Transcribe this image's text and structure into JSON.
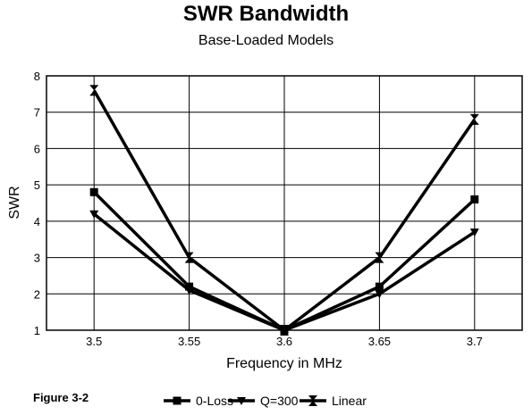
{
  "figure_label": "Figure 3-2",
  "chart_data": {
    "type": "line",
    "title": "SWR Bandwidth",
    "subtitle": "Base-Loaded Models",
    "xlabel": "Frequency in MHz",
    "ylabel": "SWR",
    "x": [
      3.5,
      3.55,
      3.6,
      3.65,
      3.7
    ],
    "x_tick_labels": [
      "3.5",
      "3.55",
      "3.6",
      "3.65",
      "3.7"
    ],
    "ylim": [
      1,
      8
    ],
    "y_ticks": [
      1,
      2,
      3,
      4,
      5,
      6,
      7,
      8
    ],
    "grid": "horizontal and vertical",
    "legend_position": "bottom",
    "series": [
      {
        "name": "0-Loss",
        "marker": "square",
        "values": [
          4.8,
          2.2,
          1.0,
          2.2,
          4.6
        ]
      },
      {
        "name": "Q=300",
        "marker": "triangle-down",
        "values": [
          4.2,
          2.1,
          1.0,
          2.0,
          3.7
        ]
      },
      {
        "name": "Linear",
        "marker": "hourglass",
        "values": [
          7.6,
          3.0,
          1.0,
          3.0,
          6.8
        ]
      }
    ],
    "line_color": "#000000"
  }
}
